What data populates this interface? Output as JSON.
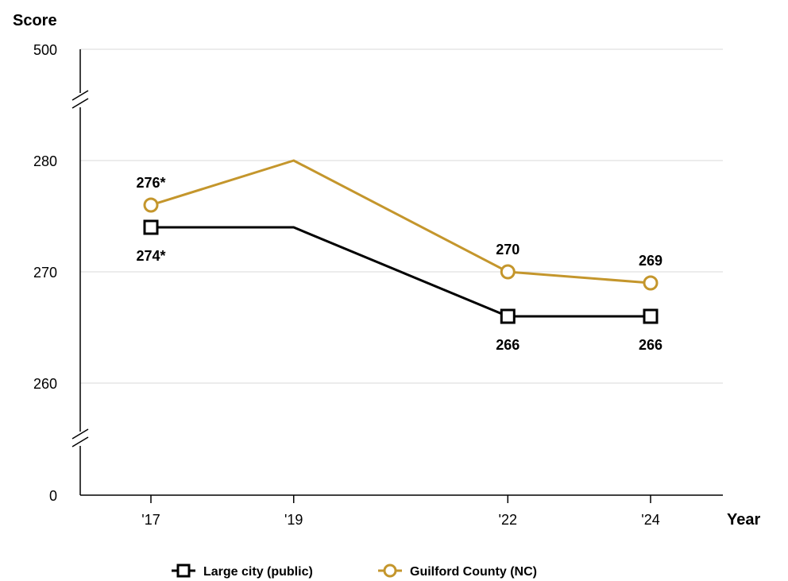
{
  "chart_data": {
    "type": "line",
    "ylabel": "Score",
    "xlabel": "Year",
    "categories": [
      "'17",
      "'19",
      "'22",
      "'24"
    ],
    "x_years": [
      2017,
      2019,
      2022,
      2024
    ],
    "y_ticks": [
      "500",
      "280",
      "270",
      "260",
      "0"
    ],
    "ylim_displayed": [
      255,
      285
    ],
    "axis_breaks": true,
    "grid": true,
    "legend_position": "bottom",
    "series": [
      {
        "name": "Large city (public)",
        "values": [
          274,
          274,
          266,
          266
        ],
        "labels": [
          "274*",
          "",
          "266",
          "266"
        ],
        "marker": "square",
        "color": "#000000"
      },
      {
        "name": "Guilford County (NC)",
        "values": [
          276,
          280,
          270,
          269
        ],
        "labels": [
          "276*",
          "",
          "270",
          "269"
        ],
        "marker": "circle",
        "color": "#C4962C"
      }
    ]
  }
}
